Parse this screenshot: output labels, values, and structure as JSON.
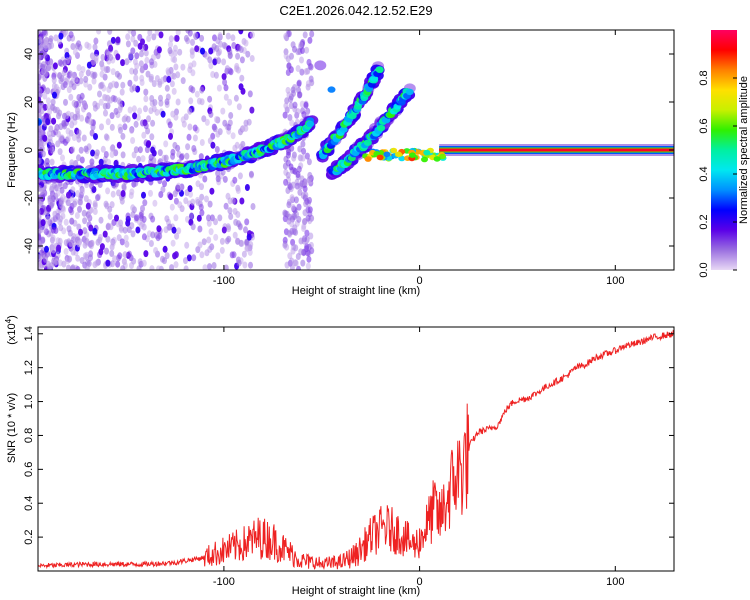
{
  "figure_title": "C2E1.2026.042.12.52.E29",
  "chart_data": [
    {
      "type": "heatmap",
      "title": "C2E1.2026.042.12.52.E29",
      "xlabel": "Height of straight line (km)",
      "ylabel": "Frequency (Hz)",
      "xlim": [
        -195,
        130
      ],
      "ylim": [
        -50,
        50
      ],
      "xticks": [
        -100,
        0,
        100
      ],
      "yticks": [
        -40,
        -20,
        0,
        20,
        40
      ],
      "grid": false,
      "colorbar": {
        "label": "Normalized spectral amplitude",
        "range": [
          0,
          1
        ],
        "ticks": [
          0.0,
          0.2,
          0.4,
          0.6,
          0.8
        ],
        "colormap": [
          "#e8d8f4",
          "#9a6fe0",
          "#5a00e8",
          "#0000ff",
          "#0090ff",
          "#00e8f0",
          "#00f0a0",
          "#30f000",
          "#c8f000",
          "#ffe000",
          "#ff8000",
          "#ff0000",
          "#ff0060"
        ]
      },
      "features": [
        {
          "name": "main-trace",
          "description": "dominant frequency ridge",
          "x": [
            -195,
            -150,
            -120,
            -100,
            -80,
            -65,
            -55
          ],
          "y": [
            -10,
            -10,
            -8,
            -5,
            0,
            5,
            12
          ]
        },
        {
          "name": "secondary-trace",
          "x": [
            -45,
            -35,
            -25,
            -15,
            -5
          ],
          "y": [
            -10,
            -3,
            5,
            15,
            25
          ]
        },
        {
          "name": "branch-trace",
          "x": [
            -50,
            -40,
            -30,
            -20
          ],
          "y": [
            -2,
            8,
            20,
            35
          ]
        },
        {
          "name": "stable-line",
          "x": [
            10,
            130
          ],
          "y": [
            0,
            0
          ],
          "amplitude": 0.95
        }
      ]
    },
    {
      "type": "line",
      "xlabel": "Height of straight line (km)",
      "ylabel": "SNR (10 * v/v)",
      "scale_label": "(x10^4)",
      "scale_base": "(x10",
      "scale_exp": "4",
      "scale_close": ")",
      "xlim": [
        -195,
        130
      ],
      "ylim": [
        0,
        1.44
      ],
      "xticks": [
        -100,
        0,
        100
      ],
      "yticks": [
        0.2,
        0.4,
        0.6,
        0.8,
        1.0,
        1.2,
        1.4
      ],
      "grid": false,
      "color": "#ee2222",
      "series": [
        {
          "name": "SNR",
          "x": [
            -195,
            -170,
            -140,
            -125,
            -110,
            -100,
            -90,
            -82,
            -75,
            -68,
            -60,
            -50,
            -40,
            -32,
            -25,
            -18,
            -10,
            -3,
            0,
            5,
            8,
            10,
            14,
            18,
            22,
            26,
            30,
            36,
            40,
            44,
            48,
            55,
            60,
            65,
            70,
            75,
            80,
            85,
            90,
            95,
            100,
            105,
            110,
            115,
            120,
            125,
            130
          ],
          "y": [
            0.03,
            0.04,
            0.04,
            0.05,
            0.08,
            0.12,
            0.16,
            0.2,
            0.18,
            0.12,
            0.06,
            0.04,
            0.05,
            0.1,
            0.2,
            0.26,
            0.22,
            0.15,
            0.18,
            0.3,
            0.38,
            0.3,
            0.42,
            0.55,
            0.6,
            0.75,
            0.82,
            0.84,
            0.86,
            0.95,
            1.0,
            1.02,
            1.05,
            1.09,
            1.12,
            1.15,
            1.2,
            1.22,
            1.26,
            1.28,
            1.3,
            1.33,
            1.34,
            1.36,
            1.38,
            1.39,
            1.4
          ]
        }
      ]
    }
  ]
}
